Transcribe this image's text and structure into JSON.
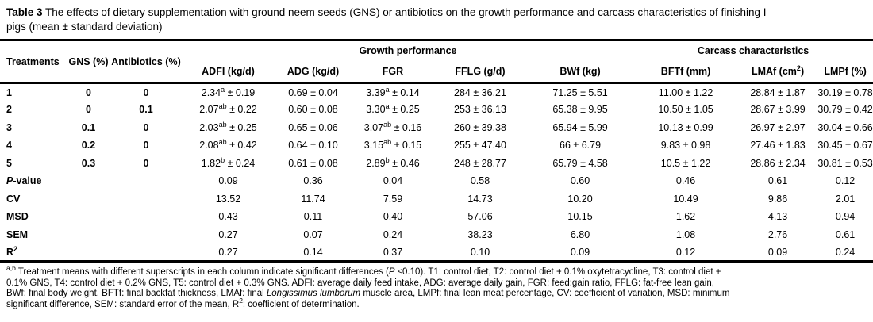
{
  "title": {
    "segments": [
      {
        "t": "Table 3",
        "b": true
      },
      {
        "t": " The effects of dietary supplementation with ground neem seeds (GNS) or antibiotics on the growth performance and carcass characteristics of finishing I"
      },
      {
        "br": true
      },
      {
        "t": "pigs (mean ± standard deviation)"
      }
    ]
  },
  "table": {
    "plus_minus": "±",
    "header": {
      "treatments": "Treatments",
      "gns": "GNS (%)",
      "antibiotics": "Antibiotics (%)",
      "groups": [
        {
          "label": "Growth performance",
          "span": 5
        },
        {
          "label": "Carcass characteristics",
          "span": 3
        }
      ],
      "measures": [
        {
          "id": "adfi",
          "t": "ADFI (kg/d)"
        },
        {
          "id": "adg",
          "t": "ADG (kg/d)"
        },
        {
          "id": "fgr",
          "t": "FGR"
        },
        {
          "id": "fflg",
          "t": "FFLG (g/d)"
        },
        {
          "id": "bwf",
          "t": "BWf (kg)"
        },
        {
          "id": "bftf",
          "t": "BFTf (mm)"
        },
        {
          "id": "lmaf",
          "t": "LMAf (cm",
          "sup": "2",
          "rest": ")"
        },
        {
          "id": "lmpf",
          "t": "LMPf (%)"
        }
      ]
    },
    "treatment_rows": [
      {
        "treatment": "1",
        "gns": "0",
        "antibiotics": "0",
        "cells": [
          {
            "v": "2.34",
            "sup": "a",
            "sd": "0.19"
          },
          {
            "v": "0.69",
            "sd": "0.04"
          },
          {
            "v": "3.39",
            "sup": "a",
            "sd": "0.14"
          },
          {
            "v": "284",
            "sd": "36.21"
          },
          {
            "v": "71.25",
            "sd": "5.51"
          },
          {
            "v": "11.00",
            "sd": "1.22"
          },
          {
            "v": "28.84",
            "sd": "1.87"
          },
          {
            "v": "30.19",
            "sd": "0.78"
          }
        ]
      },
      {
        "treatment": "2",
        "gns": "0",
        "antibiotics": "0.1",
        "cells": [
          {
            "v": "2.07",
            "sup": "ab",
            "sd": "0.22"
          },
          {
            "v": "0.60",
            "sd": "0.08"
          },
          {
            "v": "3.30",
            "sup": "a",
            "sd": "0.25"
          },
          {
            "v": "253",
            "sd": "36.13"
          },
          {
            "v": "65.38",
            "sd": "9.95"
          },
          {
            "v": "10.50",
            "sd": "1.05"
          },
          {
            "v": "28.67",
            "sd": "3.99"
          },
          {
            "v": "30.79",
            "sd": "0.42"
          }
        ]
      },
      {
        "treatment": "3",
        "gns": "0.1",
        "antibiotics": "0",
        "cells": [
          {
            "v": "2.03",
            "sup": "ab",
            "sd": "0.25"
          },
          {
            "v": "0.65",
            "sd": "0.06"
          },
          {
            "v": "3.07",
            "sup": "ab",
            "sd": "0.16"
          },
          {
            "v": "260",
            "sd": "39.38"
          },
          {
            "v": "65.94",
            "sd": "5.99"
          },
          {
            "v": "10.13",
            "sd": "0.99"
          },
          {
            "v": "26.97",
            "sd": "2.97"
          },
          {
            "v": "30.04",
            "sd": "0.66"
          }
        ]
      },
      {
        "treatment": "4",
        "gns": "0.2",
        "antibiotics": "0",
        "cells": [
          {
            "v": "2.08",
            "sup": "ab",
            "sd": "0.42"
          },
          {
            "v": "0.64",
            "sd": "0.10"
          },
          {
            "v": "3.15",
            "sup": "ab",
            "sd": "0.15"
          },
          {
            "v": "255",
            "sd": "47.40"
          },
          {
            "v": "66",
            "sd": "6.79"
          },
          {
            "v": "9.83",
            "sd": "0.98"
          },
          {
            "v": "27.46",
            "sd": "1.83"
          },
          {
            "v": "30.45",
            "sd": "0.67"
          }
        ]
      },
      {
        "treatment": "5",
        "gns": "0.3",
        "antibiotics": "0",
        "cells": [
          {
            "v": "1.82",
            "sup": "b",
            "sd": "0.24"
          },
          {
            "v": "0.61",
            "sd": "0.08"
          },
          {
            "v": "2.89",
            "sup": "b",
            "sd": "0.46"
          },
          {
            "v": "248",
            "sd": "28.77"
          },
          {
            "v": "65.79",
            "sd": "4.58"
          },
          {
            "v": "10.5",
            "sd": "1.22"
          },
          {
            "v": "28.86",
            "sd": "2.34"
          },
          {
            "v": "30.81",
            "sd": "0.53"
          }
        ]
      }
    ],
    "stat_rows": [
      {
        "id": "p-value",
        "label": [
          {
            "t": "P",
            "i": true
          },
          {
            "t": "-value"
          }
        ],
        "cells": [
          "0.09",
          "0.36",
          "0.04",
          "0.58",
          "0.60",
          "0.46",
          "0.61",
          "0.12"
        ]
      },
      {
        "id": "cv",
        "label": [
          {
            "t": "CV"
          }
        ],
        "cells": [
          "13.52",
          "11.74",
          "7.59",
          "14.73",
          "10.20",
          "10.49",
          "9.86",
          "2.01"
        ]
      },
      {
        "id": "msd",
        "label": [
          {
            "t": "MSD"
          }
        ],
        "cells": [
          "0.43",
          "0.11",
          "0.40",
          "57.06",
          "10.15",
          "1.62",
          "4.13",
          "0.94"
        ]
      },
      {
        "id": "sem",
        "label": [
          {
            "t": "SEM"
          }
        ],
        "cells": [
          "0.27",
          "0.07",
          "0.24",
          "38.23",
          "6.80",
          "1.08",
          "2.76",
          "0.61"
        ]
      },
      {
        "id": "r2",
        "label": [
          {
            "t": "R"
          },
          {
            "t": "2",
            "sup": true
          }
        ],
        "cells": [
          "0.27",
          "0.14",
          "0.37",
          "0.10",
          "0.09",
          "0.12",
          "0.09",
          "0.24"
        ]
      }
    ]
  },
  "footnote": {
    "segments": [
      {
        "t": "a,b",
        "sup": true
      },
      {
        "t": " Treatment means with different superscripts in each column indicate significant differences ("
      },
      {
        "t": "P",
        "i": true
      },
      {
        "t": " ≤0.10). T1: control diet, T2: control diet + 0.1% oxytetracycline, T3: control diet +"
      },
      {
        "br": true
      },
      {
        "t": "0.1% GNS, T4: control diet + 0.2% GNS, T5: control diet + 0.3% GNS. ADFI: average daily feed intake, ADG: average daily gain, FGR: feed:gain ratio, FFLG: fat-free lean gain,"
      },
      {
        "br": true
      },
      {
        "t": "BWf: final body weight, BFTf: final backfat thickness, LMAf: final "
      },
      {
        "t": "Longissimus lumborum",
        "i": true
      },
      {
        "t": " muscle area, LMPf: final lean meat percentage, CV: coefficient of variation, MSD: minimum"
      },
      {
        "br": true
      },
      {
        "t": "significant difference, SEM: standard error of the mean, R"
      },
      {
        "t": "2",
        "sup": true
      },
      {
        "t": ": coefficient of determination."
      }
    ]
  }
}
